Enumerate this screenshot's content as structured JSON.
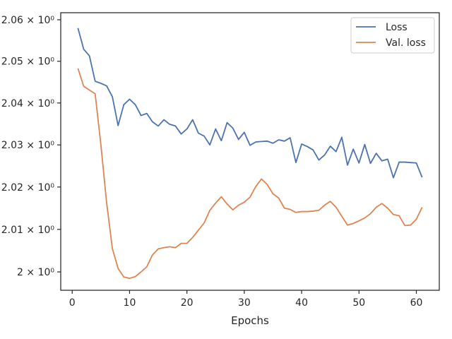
{
  "chart_data": {
    "type": "line",
    "title": "",
    "xlabel": "Epochs",
    "ylabel": "",
    "y_scale": "log",
    "x_ticks": [
      0,
      10,
      20,
      30,
      40,
      50,
      60
    ],
    "x_tick_labels": [
      "0",
      "10",
      "20",
      "30",
      "40",
      "50",
      "60"
    ],
    "y_ticks": [
      2.0,
      2.01,
      2.02,
      2.03,
      2.04,
      2.05,
      2.06
    ],
    "y_tick_labels": [
      "2 × 10⁰",
      "2.01 × 10⁰",
      "2.02 × 10⁰",
      "2.03 × 10⁰",
      "2.04 × 10⁰",
      "2.05 × 10⁰",
      "2.06 × 10⁰"
    ],
    "xlim": [
      -2,
      64
    ],
    "ylim": [
      1.9957,
      2.0617
    ],
    "grid": false,
    "legend_position": "top-right",
    "x": [
      1,
      2,
      3,
      4,
      5,
      6,
      7,
      8,
      9,
      10,
      11,
      12,
      13,
      14,
      15,
      16,
      17,
      18,
      19,
      20,
      21,
      22,
      23,
      24,
      25,
      26,
      27,
      28,
      29,
      30,
      31,
      32,
      33,
      34,
      35,
      36,
      37,
      38,
      39,
      40,
      41,
      42,
      43,
      44,
      45,
      46,
      47,
      48,
      49,
      50,
      51,
      52,
      53,
      54,
      55,
      56,
      57,
      58,
      59,
      60,
      61
    ],
    "series": [
      {
        "name": "Loss",
        "color": "#4c72b0",
        "values": [
          2.058,
          2.0529,
          2.0513,
          2.0452,
          2.0447,
          2.0441,
          2.0415,
          2.0346,
          2.0396,
          2.0409,
          2.0396,
          2.037,
          2.0375,
          2.0355,
          2.0345,
          2.036,
          2.0349,
          2.0345,
          2.0326,
          2.0338,
          2.036,
          2.0328,
          2.0321,
          2.03,
          2.0338,
          2.031,
          2.0353,
          2.034,
          2.0313,
          2.033,
          2.0299,
          2.0307,
          2.0308,
          2.0309,
          2.0304,
          2.0312,
          2.0309,
          2.0317,
          2.0258,
          2.0302,
          2.0296,
          2.0288,
          2.0264,
          2.0276,
          2.0297,
          2.0284,
          2.0318,
          2.0252,
          2.029,
          2.0257,
          2.0301,
          2.0256,
          2.028,
          2.0262,
          2.0266,
          2.0222,
          2.0259,
          2.0259,
          2.0258,
          2.0257,
          2.0223
        ]
      },
      {
        "name": "Val. loss",
        "color": "#dd8452",
        "values": [
          2.0483,
          2.044,
          2.0431,
          2.0422,
          2.03,
          2.0163,
          2.0055,
          2.0008,
          1.9988,
          1.9985,
          1.9989,
          2.0,
          2.0012,
          2.004,
          2.0054,
          2.0057,
          2.0059,
          2.0057,
          2.0067,
          2.0067,
          2.0081,
          2.0098,
          2.0115,
          2.0145,
          2.0162,
          2.0177,
          2.016,
          2.0146,
          2.0157,
          2.0164,
          2.0176,
          2.0201,
          2.0219,
          2.0206,
          2.0184,
          2.0174,
          2.015,
          2.0147,
          2.014,
          2.0142,
          2.0142,
          2.0143,
          2.0145,
          2.0157,
          2.0166,
          2.0152,
          2.0131,
          2.011,
          2.0114,
          2.012,
          2.0127,
          2.0137,
          2.0152,
          2.0161,
          2.015,
          2.0135,
          2.0132,
          2.0109,
          2.011,
          2.0124,
          2.0152
        ]
      }
    ]
  }
}
